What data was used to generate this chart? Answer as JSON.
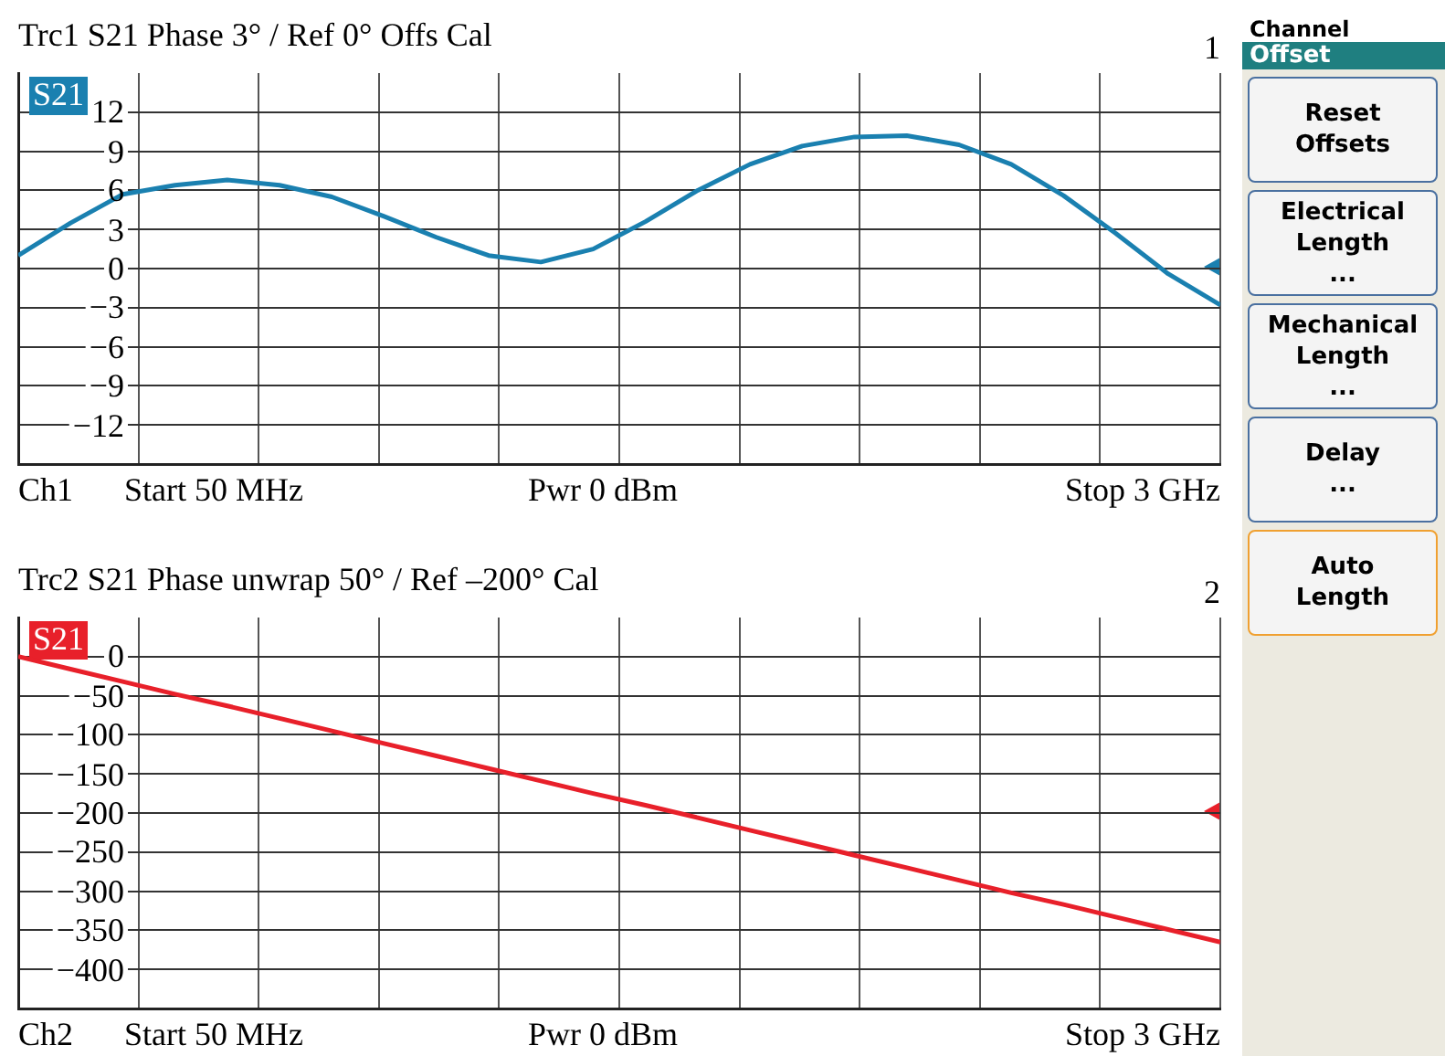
{
  "chart_data": [
    {
      "type": "line",
      "title": "Trc1 S21 Phase 3° / Ref 0° Offs Cal",
      "categories": [
        null,
        null,
        null,
        null,
        null,
        null,
        null,
        null,
        null,
        null,
        null,
        null,
        null,
        null,
        null,
        null,
        null,
        null,
        null,
        null,
        null,
        null,
        null,
        null
      ],
      "series": [
        {
          "name": "S21",
          "color": "#1a80b0",
          "values": [
            1.0,
            3.5,
            5.7,
            6.4,
            6.8,
            6.4,
            5.5,
            4.0,
            2.4,
            1.0,
            0.5,
            1.5,
            3.6,
            6.0,
            8.0,
            9.4,
            10.1,
            10.2,
            9.5,
            8.0,
            5.6,
            2.7,
            -0.4,
            -2.8
          ]
        }
      ],
      "ylim": [
        -15,
        15
      ],
      "yticks": [
        12,
        9,
        6,
        3,
        0,
        {
          "value": -3,
          "label": "−3"
        },
        {
          "value": -6,
          "label": "−6"
        },
        {
          "value": -9,
          "label": "−9"
        },
        {
          "value": -12,
          "label": "−12"
        }
      ],
      "grid": true,
      "annotations": [
        "1",
        "Ch1",
        "Start 50 MHz",
        "Pwr 0 dBm",
        "Stop 3 GHz"
      ]
    },
    {
      "type": "line",
      "title": "Trc2 S21 Phase unwrap 50° / Ref –200° Cal",
      "categories": [
        null,
        null,
        null,
        null,
        null,
        null,
        null,
        null,
        null,
        null,
        null,
        null,
        null,
        null,
        null,
        null,
        null,
        null,
        null,
        null,
        null,
        null,
        null,
        null
      ],
      "series": [
        {
          "name": "S21",
          "color": "#e8202a",
          "values": [
            0,
            -16,
            -32,
            -48,
            -63,
            -79,
            -95,
            -111,
            -127,
            -143,
            -159,
            -175,
            -190,
            -206,
            -222,
            -238,
            -254,
            -270,
            -286,
            -302,
            -317,
            -333,
            -349,
            -365
          ]
        }
      ],
      "ylim": [
        -450,
        50
      ],
      "yticks": [
        0,
        {
          "value": -50,
          "label": "−50"
        },
        {
          "value": -100,
          "label": "−100"
        },
        {
          "value": -150,
          "label": "−150"
        },
        {
          "value": -200,
          "label": "−200"
        },
        {
          "value": -250,
          "label": "−250"
        },
        {
          "value": -300,
          "label": "−300"
        },
        {
          "value": -350,
          "label": "−350"
        },
        {
          "value": -400,
          "label": "−400"
        }
      ],
      "grid": true,
      "annotations": [
        "2",
        "Ch2",
        "Start 50 MHz",
        "Pwr 0 dBm",
        "Stop 3 GHz"
      ]
    },
    {
      "type": "other",
      "title": "Channel",
      "subtitle": "Offset",
      "annotations": [
        "Reset\nOffsets",
        "Electrical\nLength\n...",
        "Mechanical\nLength\n...",
        "Delay\n...",
        "Auto\nLength"
      ]
    }
  ]
}
